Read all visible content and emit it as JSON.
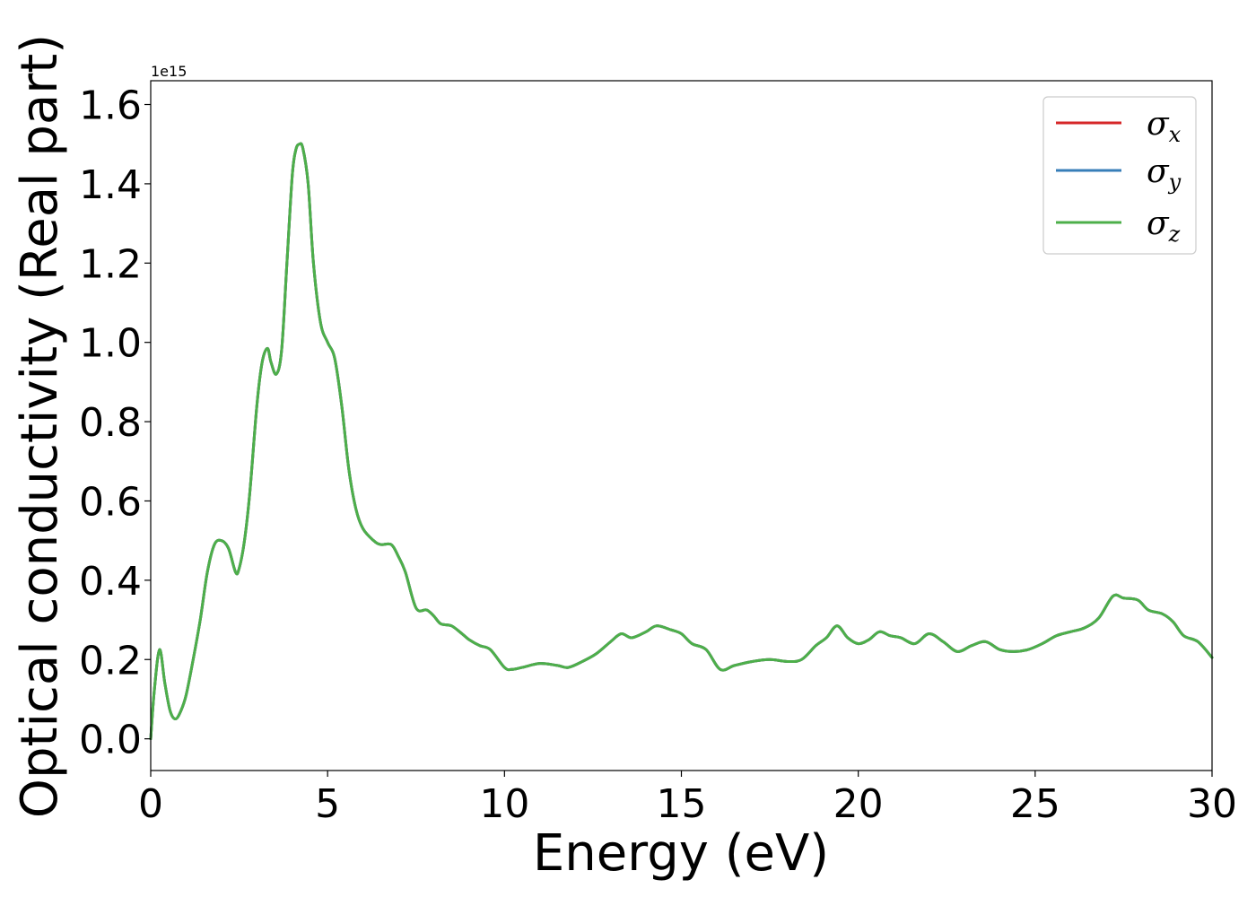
{
  "chart_data": {
    "type": "line",
    "title": "",
    "xlabel": "Energy (eV)",
    "ylabel": "Optical conductivity (Real part)",
    "y_offset_label": "1e15",
    "xlim": [
      0,
      30
    ],
    "ylim": [
      -0.08,
      1.66
    ],
    "xticks": [
      0,
      5,
      10,
      15,
      20,
      25,
      30
    ],
    "xtick_labels": [
      "0",
      "5",
      "10",
      "15",
      "20",
      "25",
      "30"
    ],
    "yticks": [
      0.0,
      0.2,
      0.4,
      0.6,
      0.8,
      1.0,
      1.2,
      1.4,
      1.6
    ],
    "ytick_labels": [
      "0.0",
      "0.2",
      "0.4",
      "0.6",
      "0.8",
      "1.0",
      "1.2",
      "1.4",
      "1.6"
    ],
    "grid": false,
    "legend_position": "top-right",
    "x": [
      0.0,
      0.1,
      0.25,
      0.4,
      0.55,
      0.7,
      0.85,
      1.0,
      1.2,
      1.4,
      1.6,
      1.8,
      2.0,
      2.2,
      2.4,
      2.5,
      2.65,
      2.8,
      3.0,
      3.15,
      3.3,
      3.4,
      3.55,
      3.7,
      3.85,
      4.0,
      4.1,
      4.2,
      4.3,
      4.45,
      4.6,
      4.8,
      5.0,
      5.2,
      5.4,
      5.6,
      5.8,
      6.0,
      6.3,
      6.5,
      6.8,
      7.0,
      7.2,
      7.5,
      7.8,
      8.0,
      8.2,
      8.5,
      8.8,
      9.0,
      9.3,
      9.6,
      10.0,
      10.2,
      10.5,
      11.0,
      11.5,
      11.8,
      12.2,
      12.6,
      13.0,
      13.3,
      13.6,
      14.0,
      14.3,
      14.7,
      15.0,
      15.3,
      15.7,
      16.1,
      16.5,
      17.0,
      17.5,
      18.0,
      18.4,
      18.8,
      19.1,
      19.4,
      19.7,
      20.0,
      20.3,
      20.6,
      20.9,
      21.2,
      21.6,
      22.0,
      22.4,
      22.8,
      23.2,
      23.6,
      24.0,
      24.4,
      24.8,
      25.2,
      25.6,
      26.0,
      26.4,
      26.8,
      27.2,
      27.5,
      27.9,
      28.2,
      28.6,
      28.9,
      29.2,
      29.6,
      30.0
    ],
    "series": [
      {
        "name": "σx",
        "color": "#d62728",
        "values": [
          0.0,
          0.12,
          0.225,
          0.14,
          0.07,
          0.05,
          0.07,
          0.11,
          0.2,
          0.3,
          0.42,
          0.49,
          0.5,
          0.48,
          0.42,
          0.43,
          0.5,
          0.62,
          0.84,
          0.95,
          0.985,
          0.95,
          0.92,
          0.98,
          1.2,
          1.42,
          1.485,
          1.5,
          1.49,
          1.4,
          1.2,
          1.05,
          1.0,
          0.96,
          0.84,
          0.68,
          0.58,
          0.53,
          0.5,
          0.49,
          0.49,
          0.46,
          0.42,
          0.33,
          0.325,
          0.31,
          0.29,
          0.285,
          0.265,
          0.25,
          0.235,
          0.225,
          0.18,
          0.175,
          0.18,
          0.19,
          0.185,
          0.18,
          0.195,
          0.215,
          0.245,
          0.265,
          0.255,
          0.27,
          0.285,
          0.275,
          0.265,
          0.24,
          0.225,
          0.175,
          0.185,
          0.195,
          0.2,
          0.195,
          0.2,
          0.235,
          0.255,
          0.285,
          0.255,
          0.24,
          0.25,
          0.27,
          0.26,
          0.255,
          0.24,
          0.265,
          0.245,
          0.22,
          0.235,
          0.245,
          0.225,
          0.22,
          0.225,
          0.24,
          0.26,
          0.27,
          0.28,
          0.305,
          0.36,
          0.355,
          0.35,
          0.325,
          0.315,
          0.295,
          0.26,
          0.245,
          0.205
        ]
      },
      {
        "name": "σy",
        "color": "#377eb8",
        "values": [
          0.0,
          0.12,
          0.225,
          0.14,
          0.07,
          0.05,
          0.07,
          0.11,
          0.2,
          0.3,
          0.42,
          0.49,
          0.5,
          0.48,
          0.42,
          0.43,
          0.5,
          0.62,
          0.84,
          0.95,
          0.985,
          0.95,
          0.92,
          0.98,
          1.2,
          1.42,
          1.485,
          1.5,
          1.49,
          1.4,
          1.2,
          1.05,
          1.0,
          0.96,
          0.84,
          0.68,
          0.58,
          0.53,
          0.5,
          0.49,
          0.49,
          0.46,
          0.42,
          0.33,
          0.325,
          0.31,
          0.29,
          0.285,
          0.265,
          0.25,
          0.235,
          0.225,
          0.18,
          0.175,
          0.18,
          0.19,
          0.185,
          0.18,
          0.195,
          0.215,
          0.245,
          0.265,
          0.255,
          0.27,
          0.285,
          0.275,
          0.265,
          0.24,
          0.225,
          0.175,
          0.185,
          0.195,
          0.2,
          0.195,
          0.2,
          0.235,
          0.255,
          0.285,
          0.255,
          0.24,
          0.25,
          0.27,
          0.26,
          0.255,
          0.24,
          0.265,
          0.245,
          0.22,
          0.235,
          0.245,
          0.225,
          0.22,
          0.225,
          0.24,
          0.26,
          0.27,
          0.28,
          0.305,
          0.36,
          0.355,
          0.35,
          0.325,
          0.315,
          0.295,
          0.26,
          0.245,
          0.205
        ]
      },
      {
        "name": "σz",
        "color": "#4daf4a",
        "values": [
          0.0,
          0.12,
          0.225,
          0.14,
          0.07,
          0.05,
          0.07,
          0.11,
          0.2,
          0.3,
          0.42,
          0.49,
          0.5,
          0.48,
          0.42,
          0.43,
          0.5,
          0.62,
          0.84,
          0.95,
          0.985,
          0.95,
          0.92,
          0.98,
          1.2,
          1.42,
          1.485,
          1.5,
          1.49,
          1.4,
          1.2,
          1.05,
          1.0,
          0.96,
          0.84,
          0.68,
          0.58,
          0.53,
          0.5,
          0.49,
          0.49,
          0.46,
          0.42,
          0.33,
          0.325,
          0.31,
          0.29,
          0.285,
          0.265,
          0.25,
          0.235,
          0.225,
          0.18,
          0.175,
          0.18,
          0.19,
          0.185,
          0.18,
          0.195,
          0.215,
          0.245,
          0.265,
          0.255,
          0.27,
          0.285,
          0.275,
          0.265,
          0.24,
          0.225,
          0.175,
          0.185,
          0.195,
          0.2,
          0.195,
          0.2,
          0.235,
          0.255,
          0.285,
          0.255,
          0.24,
          0.25,
          0.27,
          0.26,
          0.255,
          0.24,
          0.265,
          0.245,
          0.22,
          0.235,
          0.245,
          0.225,
          0.22,
          0.225,
          0.24,
          0.26,
          0.27,
          0.28,
          0.305,
          0.36,
          0.355,
          0.35,
          0.325,
          0.315,
          0.295,
          0.26,
          0.245,
          0.205
        ]
      }
    ],
    "legend": [
      {
        "symbol": "σ",
        "sub": "x",
        "color": "#d62728"
      },
      {
        "symbol": "σ",
        "sub": "y",
        "color": "#377eb8"
      },
      {
        "symbol": "σ",
        "sub": "z",
        "color": "#4daf4a"
      }
    ]
  }
}
